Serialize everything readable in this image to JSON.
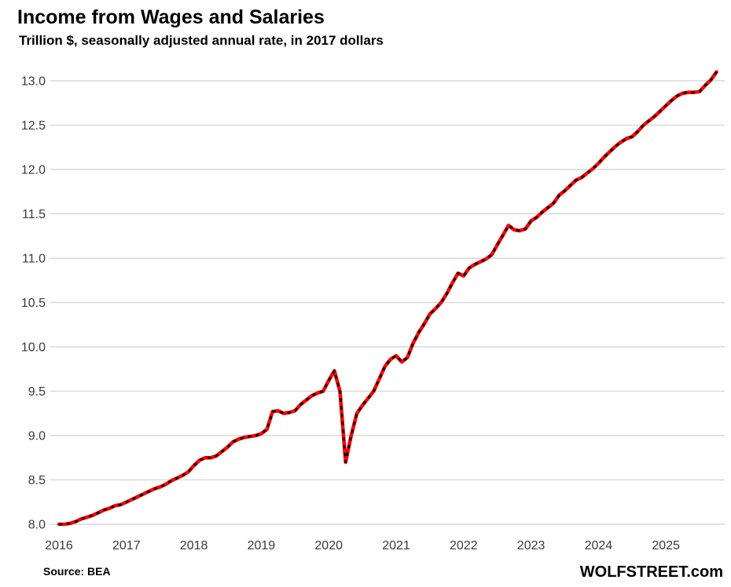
{
  "header": {
    "title": "Income from Wages and Salaries",
    "subtitle": "Trillion $, seasonally adjusted annual rate, in 2017 dollars"
  },
  "footer": {
    "source": "Source: BEA",
    "site": "WOLFSTREET.com"
  },
  "chart_data": {
    "type": "line",
    "title": "Income from Wages and Salaries",
    "subtitle": "Trillion $, seasonally adjusted annual rate, in 2017 dollars",
    "xlabel": "",
    "ylabel": "",
    "unit": "Trillion $",
    "frequency": "monthly",
    "start_month": "2016-01",
    "end_month": "2025-10",
    "ylim": [
      8.0,
      13.0
    ],
    "y_tick_step": 0.5,
    "y_tick_labels": [
      "8.0",
      "8.5",
      "9.0",
      "9.5",
      "10.0",
      "10.5",
      "11.0",
      "11.5",
      "12.0",
      "12.5",
      "13.0"
    ],
    "x_tick_labels": [
      "2016",
      "2017",
      "2018",
      "2019",
      "2020",
      "2021",
      "2022",
      "2023",
      "2024",
      "2025"
    ],
    "grid": true,
    "legend_position": "none",
    "line_style": "red solid with black dash overlay",
    "colors": {
      "line": "#FF0000",
      "dash_overlay": "#000000",
      "grid": "#D9D9D9",
      "axis_text": "#3A3A3A"
    },
    "series": [
      {
        "name": "Income from wages and salaries, trillion 2017 $",
        "values": [
          8.0,
          8.0,
          8.01,
          8.03,
          8.06,
          8.08,
          8.1,
          8.13,
          8.16,
          8.18,
          8.21,
          8.22,
          8.25,
          8.28,
          8.31,
          8.34,
          8.37,
          8.4,
          8.42,
          8.45,
          8.49,
          8.52,
          8.55,
          8.59,
          8.66,
          8.72,
          8.75,
          8.75,
          8.77,
          8.82,
          8.87,
          8.93,
          8.96,
          8.98,
          8.99,
          9.0,
          9.02,
          9.07,
          9.27,
          9.28,
          9.25,
          9.26,
          9.28,
          9.35,
          9.4,
          9.45,
          9.48,
          9.5,
          9.62,
          9.73,
          9.5,
          8.7,
          9.0,
          9.25,
          9.34,
          9.42,
          9.5,
          9.64,
          9.78,
          9.86,
          9.9,
          9.83,
          9.88,
          10.04,
          10.16,
          10.26,
          10.37,
          10.43,
          10.5,
          10.6,
          10.72,
          10.83,
          10.8,
          10.89,
          10.93,
          10.96,
          10.99,
          11.04,
          11.15,
          11.26,
          11.37,
          11.32,
          11.31,
          11.33,
          11.42,
          11.46,
          11.52,
          11.57,
          11.62,
          11.71,
          11.76,
          11.82,
          11.88,
          11.91,
          11.96,
          12.01,
          12.07,
          12.14,
          12.2,
          12.26,
          12.31,
          12.35,
          12.37,
          12.43,
          12.5,
          12.55,
          12.6,
          12.66,
          12.72,
          12.78,
          12.83,
          12.86,
          12.87,
          12.87,
          12.88,
          12.95,
          13.01,
          13.1
        ]
      }
    ]
  }
}
